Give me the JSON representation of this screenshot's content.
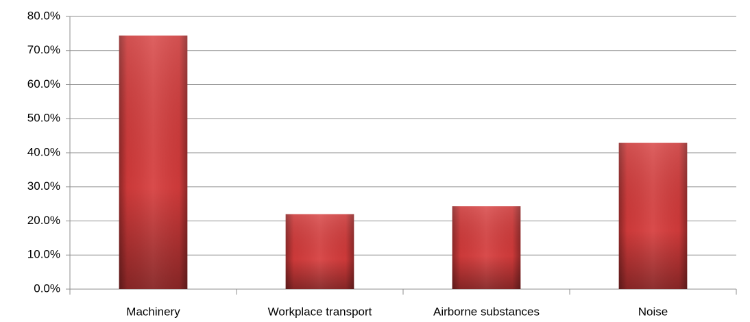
{
  "chart_data": {
    "type": "bar",
    "categories": [
      "Machinery",
      "Workplace transport",
      "Airborne substances",
      "Noise"
    ],
    "values": [
      74.4,
      22.0,
      24.3,
      42.9
    ],
    "color": "#d63c3c",
    "ylim": [
      0,
      80
    ],
    "yticks": [
      {
        "value": 0,
        "label": "0.0%"
      },
      {
        "value": 10,
        "label": "10.0%"
      },
      {
        "value": 20,
        "label": "20.0%"
      },
      {
        "value": 30,
        "label": "30.0%"
      },
      {
        "value": 40,
        "label": "40.0%"
      },
      {
        "value": 50,
        "label": "50.0%"
      },
      {
        "value": 60,
        "label": "60.0%"
      },
      {
        "value": 70,
        "label": "70.0%"
      },
      {
        "value": 80,
        "label": "80.0%"
      }
    ],
    "grid": true
  }
}
